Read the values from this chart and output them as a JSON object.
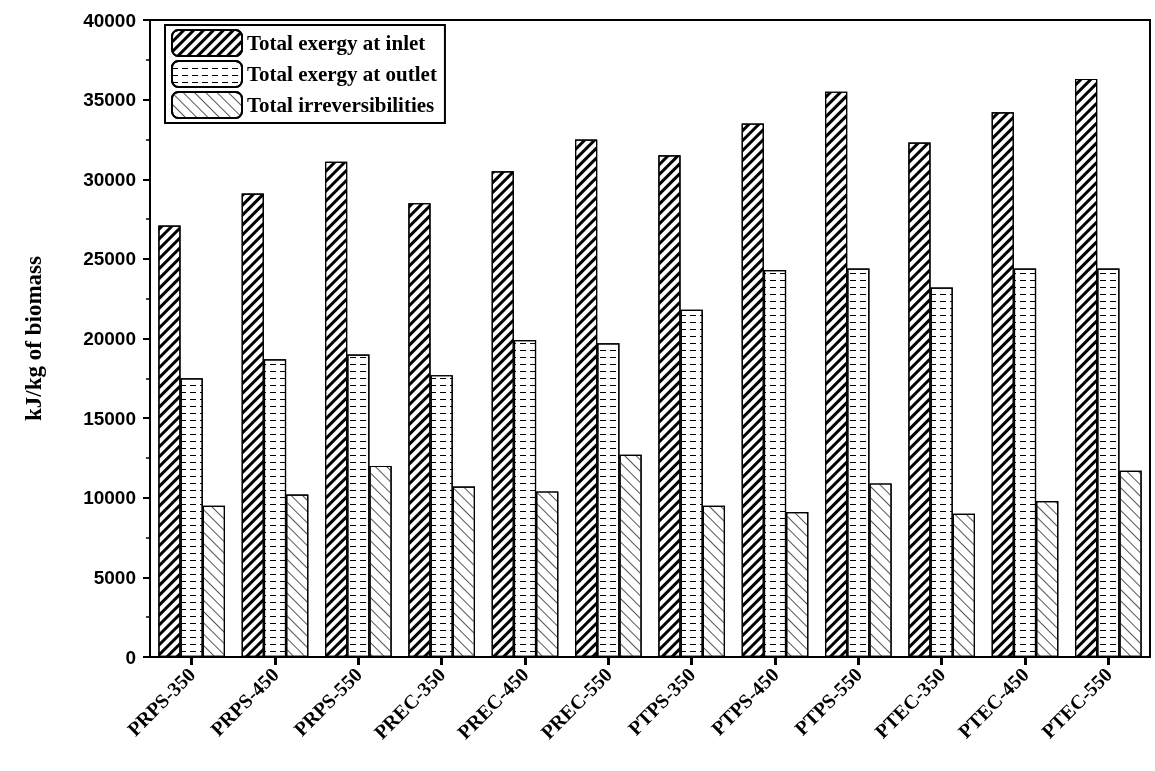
{
  "chart_data": {
    "type": "bar",
    "ylabel": "kJ/kg of biomass",
    "categories": [
      "PRPS-350",
      "PRPS-450",
      "PRPS-550",
      "PREC-350",
      "PREC-450",
      "PREC-550",
      "PTPS-350",
      "PTPS-450",
      "PTPS-550",
      "PTEC-350",
      "PTEC-450",
      "PTEC-550"
    ],
    "series": [
      {
        "name": "Total exergy at inlet",
        "color": "#ffffff",
        "values": [
          27100,
          29100,
          31100,
          28500,
          30500,
          32500,
          31500,
          33500,
          35500,
          32300,
          34200,
          36300
        ]
      },
      {
        "name": "Total exergy at outlet",
        "color": "#ffffff",
        "values": [
          17500,
          18700,
          19000,
          17700,
          19900,
          19700,
          21800,
          24300,
          24400,
          23200,
          24400,
          24400
        ]
      },
      {
        "name": "Total irreversibilities",
        "color": "#ffffff",
        "values": [
          9500,
          10200,
          12000,
          10700,
          10400,
          12700,
          9500,
          9100,
          10900,
          9000,
          9800,
          11700
        ]
      }
    ],
    "ylim": [
      0,
      40000
    ],
    "yticks": [
      0,
      5000,
      10000,
      15000,
      20000,
      25000,
      30000,
      35000,
      40000
    ],
    "grid": false,
    "legend": "top left"
  }
}
